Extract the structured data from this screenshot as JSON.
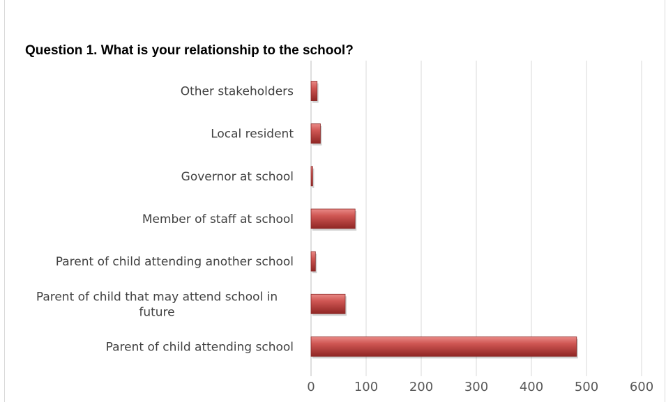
{
  "chart_data": {
    "type": "bar",
    "orientation": "horizontal",
    "title": "Question 1. What is your relationship to the school?",
    "categories": [
      [
        "Parent of child attending school"
      ],
      [
        "Parent of child that may attend school in",
        "future"
      ],
      [
        "Parent of child attending another school"
      ],
      [
        "Member of staff at school"
      ],
      [
        "Governor at school"
      ],
      [
        "Local resident"
      ],
      [
        "Other stakeholders"
      ]
    ],
    "values": [
      482,
      62,
      8,
      80,
      3,
      17,
      11
    ],
    "xlim": [
      0,
      600
    ],
    "xticks": [
      0,
      100,
      200,
      300,
      400,
      500,
      600
    ],
    "grid": "vertical",
    "bar_color": "#c0504d"
  }
}
